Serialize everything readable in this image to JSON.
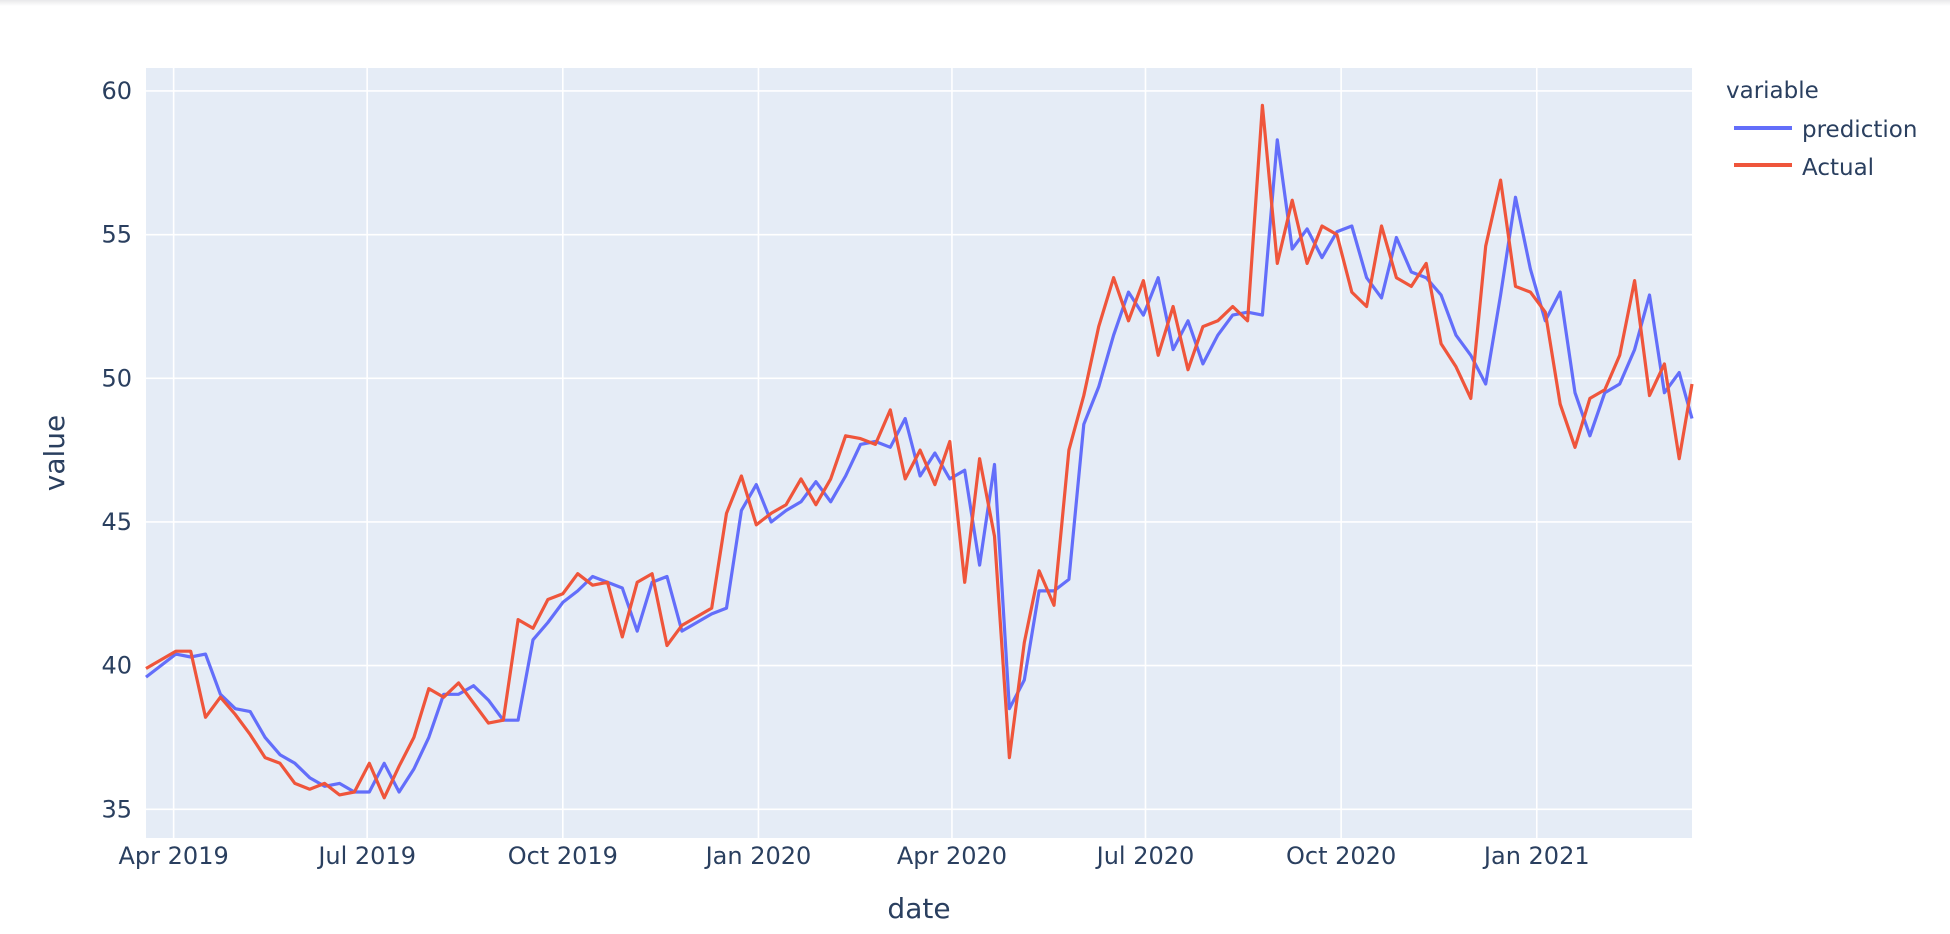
{
  "chart_data": {
    "type": "line",
    "title": "",
    "xlabel": "date",
    "ylabel": "value",
    "xlim": [
      "2019-03-19",
      "2021-03-15"
    ],
    "ylim": [
      34,
      60.8
    ],
    "x_ticks": [
      {
        "label": "Apr 2019",
        "date": "2019-04-01"
      },
      {
        "label": "Jul 2019",
        "date": "2019-07-01"
      },
      {
        "label": "Oct 2019",
        "date": "2019-10-01"
      },
      {
        "label": "Jan 2020",
        "date": "2020-01-01"
      },
      {
        "label": "Apr 2020",
        "date": "2020-04-01"
      },
      {
        "label": "Jul 2020",
        "date": "2020-07-01"
      },
      {
        "label": "Oct 2020",
        "date": "2020-10-01"
      },
      {
        "label": "Jan 2021",
        "date": "2021-01-01"
      }
    ],
    "y_ticks": [
      35,
      40,
      45,
      50,
      55,
      60
    ],
    "grid": true,
    "legend": {
      "title": "variable",
      "position": "right"
    },
    "series": [
      {
        "name": "prediction",
        "color": "#636efa",
        "points": [
          [
            "2019-03-19",
            39.6
          ],
          [
            "2019-03-26",
            40.0
          ],
          [
            "2019-04-02",
            40.4
          ],
          [
            "2019-04-09",
            40.3
          ],
          [
            "2019-04-16",
            40.4
          ],
          [
            "2019-04-23",
            39.0
          ],
          [
            "2019-04-30",
            38.5
          ],
          [
            "2019-05-07",
            38.4
          ],
          [
            "2019-05-14",
            37.5
          ],
          [
            "2019-05-21",
            36.9
          ],
          [
            "2019-05-28",
            36.6
          ],
          [
            "2019-06-04",
            36.1
          ],
          [
            "2019-06-11",
            35.8
          ],
          [
            "2019-06-18",
            35.9
          ],
          [
            "2019-06-25",
            35.6
          ],
          [
            "2019-07-02",
            35.6
          ],
          [
            "2019-07-09",
            36.6
          ],
          [
            "2019-07-16",
            35.6
          ],
          [
            "2019-07-23",
            36.4
          ],
          [
            "2019-07-30",
            37.5
          ],
          [
            "2019-08-06",
            39.0
          ],
          [
            "2019-08-13",
            39.0
          ],
          [
            "2019-08-20",
            39.3
          ],
          [
            "2019-08-27",
            38.8
          ],
          [
            "2019-09-03",
            38.1
          ],
          [
            "2019-09-10",
            38.1
          ],
          [
            "2019-09-17",
            40.9
          ],
          [
            "2019-09-24",
            41.5
          ],
          [
            "2019-10-01",
            42.2
          ],
          [
            "2019-10-08",
            42.6
          ],
          [
            "2019-10-15",
            43.1
          ],
          [
            "2019-10-22",
            42.9
          ],
          [
            "2019-10-29",
            42.7
          ],
          [
            "2019-11-05",
            41.2
          ],
          [
            "2019-11-12",
            42.9
          ],
          [
            "2019-11-19",
            43.1
          ],
          [
            "2019-11-26",
            41.2
          ],
          [
            "2019-12-03",
            41.5
          ],
          [
            "2019-12-10",
            41.8
          ],
          [
            "2019-12-17",
            42.0
          ],
          [
            "2019-12-24",
            45.4
          ],
          [
            "2019-12-31",
            46.3
          ],
          [
            "2020-01-07",
            45.0
          ],
          [
            "2020-01-14",
            45.4
          ],
          [
            "2020-01-21",
            45.7
          ],
          [
            "2020-01-28",
            46.4
          ],
          [
            "2020-02-04",
            45.7
          ],
          [
            "2020-02-11",
            46.6
          ],
          [
            "2020-02-18",
            47.7
          ],
          [
            "2020-02-25",
            47.8
          ],
          [
            "2020-03-03",
            47.6
          ],
          [
            "2020-03-10",
            48.6
          ],
          [
            "2020-03-17",
            46.6
          ],
          [
            "2020-03-24",
            47.4
          ],
          [
            "2020-03-31",
            46.5
          ],
          [
            "2020-04-07",
            46.8
          ],
          [
            "2020-04-14",
            43.5
          ],
          [
            "2020-04-21",
            47.0
          ],
          [
            "2020-04-28",
            38.5
          ],
          [
            "2020-05-05",
            39.5
          ],
          [
            "2020-05-12",
            42.6
          ],
          [
            "2020-05-19",
            42.6
          ],
          [
            "2020-05-26",
            43.0
          ],
          [
            "2020-06-02",
            48.4
          ],
          [
            "2020-06-09",
            49.7
          ],
          [
            "2020-06-16",
            51.5
          ],
          [
            "2020-06-23",
            53.0
          ],
          [
            "2020-06-30",
            52.2
          ],
          [
            "2020-07-07",
            53.5
          ],
          [
            "2020-07-14",
            51.0
          ],
          [
            "2020-07-21",
            52.0
          ],
          [
            "2020-07-28",
            50.5
          ],
          [
            "2020-08-04",
            51.5
          ],
          [
            "2020-08-11",
            52.2
          ],
          [
            "2020-08-18",
            52.3
          ],
          [
            "2020-08-25",
            52.2
          ],
          [
            "2020-09-01",
            58.3
          ],
          [
            "2020-09-08",
            54.5
          ],
          [
            "2020-09-15",
            55.2
          ],
          [
            "2020-09-22",
            54.2
          ],
          [
            "2020-09-29",
            55.1
          ],
          [
            "2020-10-06",
            55.3
          ],
          [
            "2020-10-13",
            53.5
          ],
          [
            "2020-10-20",
            52.8
          ],
          [
            "2020-10-27",
            54.9
          ],
          [
            "2020-11-03",
            53.7
          ],
          [
            "2020-11-10",
            53.5
          ],
          [
            "2020-11-17",
            52.9
          ],
          [
            "2020-11-24",
            51.5
          ],
          [
            "2020-12-01",
            50.8
          ],
          [
            "2020-12-08",
            49.8
          ],
          [
            "2020-12-15",
            52.9
          ],
          [
            "2020-12-22",
            56.3
          ],
          [
            "2020-12-29",
            53.8
          ],
          [
            "2021-01-05",
            52.0
          ],
          [
            "2021-01-12",
            53.0
          ],
          [
            "2021-01-19",
            49.5
          ],
          [
            "2021-01-26",
            48.0
          ],
          [
            "2021-02-02",
            49.5
          ],
          [
            "2021-02-09",
            49.8
          ],
          [
            "2021-02-16",
            51.0
          ],
          [
            "2021-02-23",
            52.9
          ],
          [
            "2021-03-02",
            49.5
          ],
          [
            "2021-03-09",
            50.2
          ],
          [
            "2021-03-15",
            48.6
          ]
        ]
      },
      {
        "name": "Actual",
        "color": "#ef553b",
        "points": [
          [
            "2019-03-19",
            39.9
          ],
          [
            "2019-03-26",
            40.2
          ],
          [
            "2019-04-02",
            40.5
          ],
          [
            "2019-04-09",
            40.5
          ],
          [
            "2019-04-16",
            38.2
          ],
          [
            "2019-04-23",
            38.9
          ],
          [
            "2019-04-30",
            38.3
          ],
          [
            "2019-05-07",
            37.6
          ],
          [
            "2019-05-14",
            36.8
          ],
          [
            "2019-05-21",
            36.6
          ],
          [
            "2019-05-28",
            35.9
          ],
          [
            "2019-06-04",
            35.7
          ],
          [
            "2019-06-11",
            35.9
          ],
          [
            "2019-06-18",
            35.5
          ],
          [
            "2019-06-25",
            35.6
          ],
          [
            "2019-07-02",
            36.6
          ],
          [
            "2019-07-09",
            35.4
          ],
          [
            "2019-07-16",
            36.5
          ],
          [
            "2019-07-23",
            37.5
          ],
          [
            "2019-07-30",
            39.2
          ],
          [
            "2019-08-06",
            38.9
          ],
          [
            "2019-08-13",
            39.4
          ],
          [
            "2019-08-20",
            38.7
          ],
          [
            "2019-08-27",
            38.0
          ],
          [
            "2019-09-03",
            38.1
          ],
          [
            "2019-09-10",
            41.6
          ],
          [
            "2019-09-17",
            41.3
          ],
          [
            "2019-09-24",
            42.3
          ],
          [
            "2019-10-01",
            42.5
          ],
          [
            "2019-10-08",
            43.2
          ],
          [
            "2019-10-15",
            42.8
          ],
          [
            "2019-10-22",
            42.9
          ],
          [
            "2019-10-29",
            41.0
          ],
          [
            "2019-11-05",
            42.9
          ],
          [
            "2019-11-12",
            43.2
          ],
          [
            "2019-11-19",
            40.7
          ],
          [
            "2019-11-26",
            41.4
          ],
          [
            "2019-12-03",
            41.7
          ],
          [
            "2019-12-10",
            42.0
          ],
          [
            "2019-12-17",
            45.3
          ],
          [
            "2019-12-24",
            46.6
          ],
          [
            "2019-12-31",
            44.9
          ],
          [
            "2020-01-07",
            45.3
          ],
          [
            "2020-01-14",
            45.6
          ],
          [
            "2020-01-21",
            46.5
          ],
          [
            "2020-01-28",
            45.6
          ],
          [
            "2020-02-04",
            46.5
          ],
          [
            "2020-02-11",
            48.0
          ],
          [
            "2020-02-18",
            47.9
          ],
          [
            "2020-02-25",
            47.7
          ],
          [
            "2020-03-03",
            48.9
          ],
          [
            "2020-03-10",
            46.5
          ],
          [
            "2020-03-17",
            47.5
          ],
          [
            "2020-03-24",
            46.3
          ],
          [
            "2020-03-31",
            47.8
          ],
          [
            "2020-04-07",
            42.9
          ],
          [
            "2020-04-14",
            47.2
          ],
          [
            "2020-04-21",
            44.5
          ],
          [
            "2020-04-28",
            36.8
          ],
          [
            "2020-05-05",
            40.8
          ],
          [
            "2020-05-12",
            43.3
          ],
          [
            "2020-05-19",
            42.1
          ],
          [
            "2020-05-26",
            47.5
          ],
          [
            "2020-06-02",
            49.4
          ],
          [
            "2020-06-09",
            51.8
          ],
          [
            "2020-06-16",
            53.5
          ],
          [
            "2020-06-23",
            52.0
          ],
          [
            "2020-06-30",
            53.4
          ],
          [
            "2020-07-07",
            50.8
          ],
          [
            "2020-07-14",
            52.5
          ],
          [
            "2020-07-21",
            50.3
          ],
          [
            "2020-07-28",
            51.8
          ],
          [
            "2020-08-04",
            52.0
          ],
          [
            "2020-08-11",
            52.5
          ],
          [
            "2020-08-18",
            52.0
          ],
          [
            "2020-08-25",
            59.5
          ],
          [
            "2020-09-01",
            54.0
          ],
          [
            "2020-09-08",
            56.2
          ],
          [
            "2020-09-15",
            54.0
          ],
          [
            "2020-09-22",
            55.3
          ],
          [
            "2020-09-29",
            55.0
          ],
          [
            "2020-10-06",
            53.0
          ],
          [
            "2020-10-13",
            52.5
          ],
          [
            "2020-10-20",
            55.3
          ],
          [
            "2020-10-27",
            53.5
          ],
          [
            "2020-11-03",
            53.2
          ],
          [
            "2020-11-10",
            54.0
          ],
          [
            "2020-11-17",
            51.2
          ],
          [
            "2020-11-24",
            50.4
          ],
          [
            "2020-12-01",
            49.3
          ],
          [
            "2020-12-08",
            54.6
          ],
          [
            "2020-12-15",
            56.9
          ],
          [
            "2020-12-22",
            53.2
          ],
          [
            "2020-12-29",
            53.0
          ],
          [
            "2021-01-05",
            52.3
          ],
          [
            "2021-01-12",
            49.1
          ],
          [
            "2021-01-19",
            47.6
          ],
          [
            "2021-01-26",
            49.3
          ],
          [
            "2021-02-02",
            49.6
          ],
          [
            "2021-02-09",
            50.8
          ],
          [
            "2021-02-16",
            53.4
          ],
          [
            "2021-02-23",
            49.4
          ],
          [
            "2021-03-02",
            50.5
          ],
          [
            "2021-03-09",
            47.2
          ],
          [
            "2021-03-15",
            49.8
          ]
        ]
      }
    ]
  }
}
